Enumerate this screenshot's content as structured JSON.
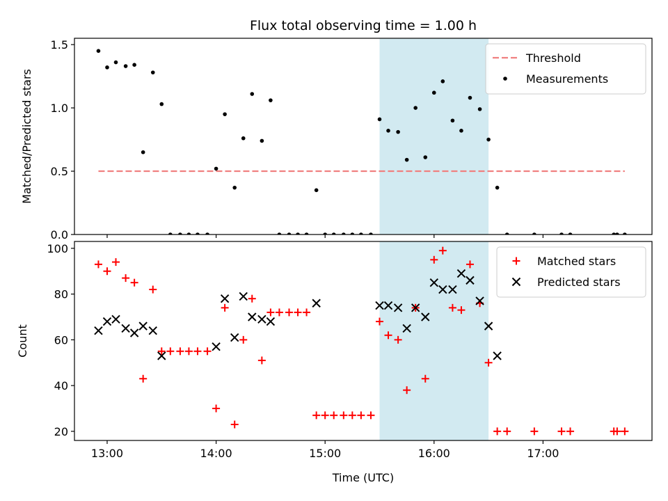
{
  "chart_data": {
    "type": "scatter",
    "title": "Flux total observing time = 1.00 h",
    "xlabel": "Time (UTC)",
    "xlim": [
      12.7,
      18.0
    ],
    "xticks": [
      13,
      14,
      15,
      16,
      17
    ],
    "xtick_labels": [
      "13:00",
      "14:00",
      "15:00",
      "16:00",
      "17:00"
    ],
    "highlight_span": [
      15.5,
      16.5
    ],
    "highlight_color": "#add8e6",
    "panels": [
      {
        "ylabel": "Matched/Predicted stars",
        "ylim": [
          0,
          1.55
        ],
        "yticks": [
          0.0,
          0.5,
          1.0,
          1.5
        ],
        "ytick_labels": [
          "0.0",
          "0.5",
          "1.0",
          "1.5"
        ],
        "legend_position": "top-right",
        "threshold": {
          "name": "Threshold",
          "value": 0.5,
          "x_range": [
            12.92,
            17.75
          ],
          "color": "#f08080"
        },
        "series": [
          {
            "name": "Measurements",
            "marker": "dot",
            "color": "#000000",
            "x": [
              12.92,
              13.0,
              13.08,
              13.17,
              13.25,
              13.33,
              13.42,
              13.5,
              13.58,
              13.67,
              13.75,
              13.83,
              13.92,
              14.0,
              14.08,
              14.17,
              14.25,
              14.33,
              14.42,
              14.5,
              14.58,
              14.67,
              14.75,
              14.83,
              14.92,
              15.0,
              15.08,
              15.17,
              15.25,
              15.33,
              15.42,
              15.5,
              15.58,
              15.67,
              15.75,
              15.83,
              15.92,
              16.0,
              16.08,
              16.17,
              16.25,
              16.33,
              16.42,
              16.5,
              16.58,
              16.67,
              16.92,
              17.17,
              17.25,
              17.65,
              17.68,
              17.75
            ],
            "y": [
              1.45,
              1.32,
              1.36,
              1.33,
              1.34,
              0.65,
              1.28,
              1.03,
              0.0,
              0.0,
              0.0,
              0.0,
              0.0,
              0.52,
              0.95,
              0.37,
              0.76,
              1.11,
              0.74,
              1.06,
              0.0,
              0.0,
              0.0,
              0.0,
              0.35,
              0.0,
              0.0,
              0.0,
              0.0,
              0.0,
              0.0,
              0.91,
              0.82,
              0.81,
              0.59,
              1.0,
              0.61,
              1.12,
              1.21,
              0.9,
              0.82,
              1.08,
              0.99,
              0.75,
              0.37,
              0.0,
              0.0,
              0.0,
              0.0,
              0.0,
              0.0,
              0.0
            ]
          }
        ]
      },
      {
        "ylabel": "Count",
        "ylim": [
          16,
          103
        ],
        "yticks": [
          20,
          40,
          60,
          80,
          100
        ],
        "ytick_labels": [
          "20",
          "40",
          "60",
          "80",
          "100"
        ],
        "legend_position": "top-right",
        "series": [
          {
            "name": "Matched stars",
            "marker": "plus",
            "color": "#ff0000",
            "x": [
              12.92,
              13.0,
              13.08,
              13.17,
              13.25,
              13.33,
              13.42,
              13.5,
              13.58,
              13.67,
              13.75,
              13.83,
              13.92,
              14.0,
              14.08,
              14.17,
              14.25,
              14.33,
              14.42,
              14.5,
              14.58,
              14.67,
              14.75,
              14.83,
              14.92,
              15.0,
              15.08,
              15.17,
              15.25,
              15.33,
              15.42,
              15.5,
              15.58,
              15.67,
              15.75,
              15.83,
              15.92,
              16.0,
              16.08,
              16.17,
              16.25,
              16.33,
              16.42,
              16.5,
              16.58,
              16.67,
              16.92,
              17.17,
              17.25,
              17.65,
              17.68,
              17.75
            ],
            "y": [
              93,
              90,
              94,
              87,
              85,
              43,
              82,
              55,
              55,
              55,
              55,
              55,
              55,
              30,
              74,
              23,
              60,
              78,
              51,
              72,
              72,
              72,
              72,
              72,
              27,
              27,
              27,
              27,
              27,
              27,
              27,
              68,
              62,
              60,
              38,
              74,
              43,
              95,
              99,
              74,
              73,
              93,
              76,
              50,
              20,
              20,
              20,
              20,
              20,
              20,
              20,
              20
            ]
          },
          {
            "name": "Predicted stars",
            "marker": "x",
            "color": "#000000",
            "x": [
              12.92,
              13.0,
              13.08,
              13.17,
              13.25,
              13.33,
              13.42,
              13.5,
              14.0,
              14.08,
              14.17,
              14.25,
              14.33,
              14.42,
              14.5,
              14.92,
              15.5,
              15.58,
              15.67,
              15.75,
              15.83,
              15.92,
              16.0,
              16.08,
              16.17,
              16.25,
              16.33,
              16.42,
              16.5,
              16.58
            ],
            "y": [
              64,
              68,
              69,
              65,
              63,
              66,
              64,
              53,
              57,
              78,
              61,
              79,
              70,
              69,
              68,
              76,
              75,
              75,
              74,
              65,
              74,
              70,
              85,
              82,
              82,
              89,
              86,
              77,
              66,
              53
            ]
          }
        ]
      }
    ]
  }
}
